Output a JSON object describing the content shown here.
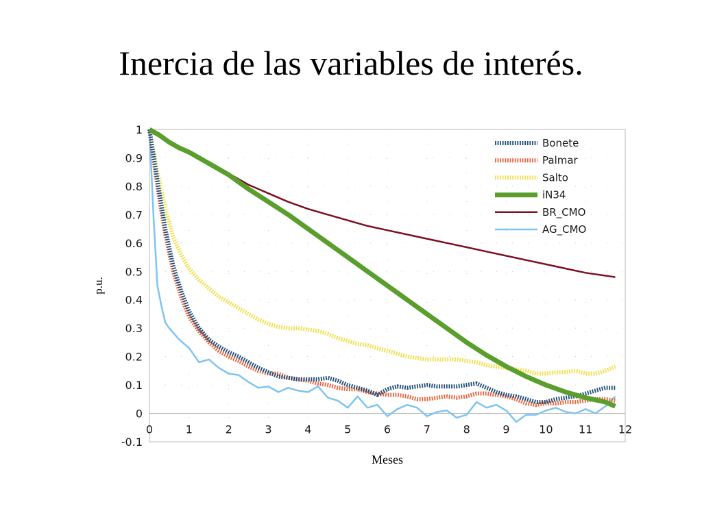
{
  "title": "Inercia de las variables de interés.",
  "chart_data": {
    "type": "line",
    "xlabel": "Meses",
    "ylabel": "p.u.",
    "xlim": [
      0,
      12
    ],
    "ylim": [
      -0.1,
      1
    ],
    "xticks": [
      0,
      1,
      2,
      3,
      4,
      5,
      6,
      7,
      8,
      9,
      10,
      11,
      12
    ],
    "yticks": [
      -0.1,
      0,
      0.1,
      0.2,
      0.3,
      0.4,
      0.5,
      0.6,
      0.7,
      0.8,
      0.9,
      1
    ],
    "grid": "dotted",
    "legend": "top-right",
    "series": [
      {
        "name": "Bonete",
        "color": "#1f4e79",
        "style": "dotted-thick",
        "x": [
          0,
          0.2,
          0.4,
          0.6,
          0.8,
          1,
          1.25,
          1.5,
          1.75,
          2,
          2.25,
          2.5,
          2.75,
          3,
          3.25,
          3.5,
          3.75,
          4,
          4.25,
          4.5,
          4.75,
          5,
          5.25,
          5.5,
          5.75,
          6,
          6.25,
          6.5,
          6.75,
          7,
          7.25,
          7.5,
          7.75,
          8,
          8.25,
          8.5,
          8.75,
          9,
          9.25,
          9.5,
          9.75,
          10,
          10.25,
          10.5,
          10.75,
          11,
          11.25,
          11.5,
          11.75
        ],
        "y": [
          1,
          0.82,
          0.65,
          0.52,
          0.43,
          0.36,
          0.3,
          0.26,
          0.235,
          0.215,
          0.2,
          0.18,
          0.16,
          0.145,
          0.13,
          0.125,
          0.12,
          0.12,
          0.12,
          0.125,
          0.115,
          0.1,
          0.09,
          0.08,
          0.065,
          0.085,
          0.095,
          0.09,
          0.095,
          0.1,
          0.095,
          0.095,
          0.095,
          0.1,
          0.105,
          0.09,
          0.075,
          0.065,
          0.06,
          0.05,
          0.04,
          0.04,
          0.05,
          0.055,
          0.06,
          0.07,
          0.08,
          0.09,
          0.09
        ]
      },
      {
        "name": "Palmar",
        "color": "#e8643c",
        "style": "dotted-thick",
        "x": [
          0,
          0.2,
          0.4,
          0.6,
          0.8,
          1,
          1.25,
          1.5,
          1.75,
          2,
          2.25,
          2.5,
          2.75,
          3,
          3.25,
          3.5,
          3.75,
          4,
          4.25,
          4.5,
          4.75,
          5,
          5.25,
          5.5,
          5.75,
          6,
          6.25,
          6.5,
          6.75,
          7,
          7.25,
          7.5,
          7.75,
          8,
          8.25,
          8.5,
          8.75,
          9,
          9.25,
          9.5,
          9.75,
          10,
          10.25,
          10.5,
          10.75,
          11,
          11.25,
          11.5,
          11.75
        ],
        "y": [
          1,
          0.8,
          0.63,
          0.5,
          0.41,
          0.34,
          0.29,
          0.25,
          0.22,
          0.2,
          0.185,
          0.165,
          0.15,
          0.14,
          0.14,
          0.125,
          0.12,
          0.115,
          0.105,
          0.1,
          0.09,
          0.085,
          0.085,
          0.075,
          0.07,
          0.065,
          0.065,
          0.06,
          0.05,
          0.05,
          0.055,
          0.06,
          0.055,
          0.06,
          0.07,
          0.07,
          0.065,
          0.06,
          0.05,
          0.035,
          0.03,
          0.035,
          0.035,
          0.04,
          0.04,
          0.045,
          0.05,
          0.05,
          0.045
        ]
      },
      {
        "name": "Salto",
        "color": "#f0e050",
        "style": "dotted-thick",
        "x": [
          0,
          0.2,
          0.4,
          0.6,
          0.8,
          1,
          1.25,
          1.5,
          1.75,
          2,
          2.25,
          2.5,
          2.75,
          3,
          3.25,
          3.5,
          3.75,
          4,
          4.25,
          4.5,
          4.75,
          5,
          5.25,
          5.5,
          5.75,
          6,
          6.25,
          6.5,
          6.75,
          7,
          7.25,
          7.5,
          7.75,
          8,
          8.25,
          8.5,
          8.75,
          9,
          9.25,
          9.5,
          9.75,
          10,
          10.25,
          10.5,
          10.75,
          11,
          11.25,
          11.5,
          11.75
        ],
        "y": [
          1,
          0.85,
          0.72,
          0.62,
          0.56,
          0.51,
          0.47,
          0.44,
          0.41,
          0.39,
          0.37,
          0.35,
          0.33,
          0.315,
          0.305,
          0.3,
          0.3,
          0.295,
          0.29,
          0.28,
          0.265,
          0.255,
          0.245,
          0.24,
          0.23,
          0.22,
          0.21,
          0.2,
          0.195,
          0.19,
          0.19,
          0.19,
          0.19,
          0.185,
          0.18,
          0.17,
          0.165,
          0.16,
          0.155,
          0.15,
          0.14,
          0.14,
          0.145,
          0.145,
          0.15,
          0.14,
          0.14,
          0.15,
          0.165
        ]
      },
      {
        "name": "iN34",
        "color": "#5a9e2e",
        "style": "solid-thick",
        "x": [
          0,
          0.25,
          0.5,
          0.75,
          1,
          1.5,
          2,
          2.5,
          3,
          3.5,
          4,
          4.5,
          5,
          5.5,
          6,
          6.5,
          7,
          7.5,
          8,
          8.5,
          9,
          9.5,
          10,
          10.5,
          11,
          11.5,
          11.75
        ],
        "y": [
          1,
          0.98,
          0.955,
          0.935,
          0.92,
          0.88,
          0.84,
          0.79,
          0.745,
          0.7,
          0.65,
          0.6,
          0.55,
          0.5,
          0.45,
          0.4,
          0.35,
          0.3,
          0.25,
          0.205,
          0.165,
          0.13,
          0.1,
          0.075,
          0.055,
          0.04,
          0.025
        ]
      },
      {
        "name": "BR_CMO",
        "color": "#7b1020",
        "style": "solid",
        "x": [
          0,
          0.5,
          1,
          1.5,
          2,
          2.5,
          3,
          3.5,
          4,
          4.5,
          5,
          5.5,
          6,
          6.5,
          7,
          7.5,
          8,
          8.5,
          9,
          9.5,
          10,
          10.5,
          11,
          11.5,
          11.75
        ],
        "y": [
          1,
          0.96,
          0.92,
          0.88,
          0.845,
          0.805,
          0.775,
          0.745,
          0.72,
          0.7,
          0.68,
          0.66,
          0.645,
          0.63,
          0.615,
          0.6,
          0.585,
          0.57,
          0.555,
          0.54,
          0.525,
          0.51,
          0.495,
          0.485,
          0.48
        ]
      },
      {
        "name": "AG_CMO",
        "color": "#7ec4f0",
        "style": "solid",
        "x": [
          0,
          0.1,
          0.2,
          0.3,
          0.4,
          0.5,
          0.75,
          1,
          1.25,
          1.5,
          1.75,
          2,
          2.25,
          2.5,
          2.75,
          3,
          3.25,
          3.5,
          3.75,
          4,
          4.25,
          4.5,
          4.75,
          5,
          5.25,
          5.5,
          5.75,
          6,
          6.25,
          6.5,
          6.75,
          7,
          7.25,
          7.5,
          7.75,
          8,
          8.25,
          8.5,
          8.75,
          9,
          9.25,
          9.5,
          9.75,
          10,
          10.25,
          10.5,
          10.75,
          11,
          11.25,
          11.5,
          11.75
        ],
        "y": [
          1,
          0.7,
          0.45,
          0.38,
          0.32,
          0.3,
          0.26,
          0.23,
          0.18,
          0.19,
          0.16,
          0.14,
          0.135,
          0.11,
          0.09,
          0.095,
          0.075,
          0.09,
          0.08,
          0.075,
          0.095,
          0.055,
          0.045,
          0.02,
          0.06,
          0.02,
          0.03,
          -0.01,
          0.015,
          0.03,
          0.02,
          -0.01,
          0.005,
          0.01,
          -0.015,
          -0.005,
          0.04,
          0.02,
          0.03,
          0.01,
          -0.03,
          -0.005,
          -0.005,
          0.01,
          0.02,
          0.005,
          0,
          0.015,
          0,
          0.025,
          0.06
        ]
      }
    ]
  }
}
